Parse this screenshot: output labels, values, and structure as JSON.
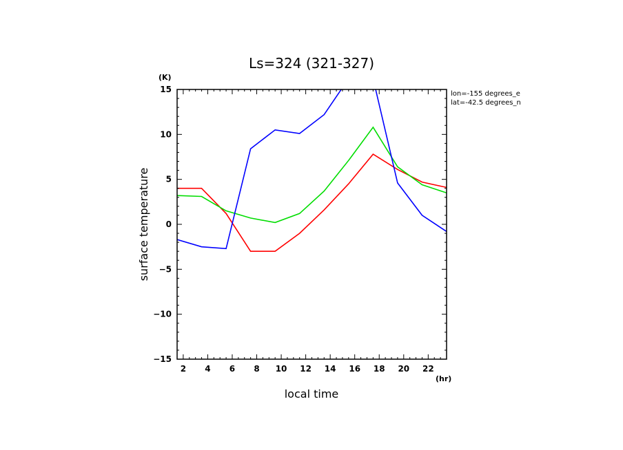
{
  "chart_data": {
    "type": "line",
    "title": "Ls=324 (321-327)",
    "xlabel": "local time",
    "ylabel": "surface temperature",
    "x_unit": "(hr)",
    "y_unit": "(K)",
    "xlim": [
      1.5,
      23.5
    ],
    "ylim": [
      -15,
      15
    ],
    "xticks": [
      2,
      4,
      6,
      8,
      10,
      12,
      14,
      16,
      18,
      20,
      22
    ],
    "yticks": [
      -15,
      -10,
      -5,
      0,
      5,
      10,
      15
    ],
    "annotations": [
      "lon=-155 degrees_e",
      "lat=-42.5 degrees_n"
    ],
    "x": [
      1.5,
      3.5,
      5.5,
      7.5,
      9.5,
      11.5,
      13.5,
      15.5,
      17.5,
      19.5,
      21.5,
      23.5
    ],
    "series": [
      {
        "color": "#ff0000",
        "values": [
          4.0,
          4.0,
          1.2,
          -3.0,
          -3.0,
          -1.0,
          1.6,
          4.5,
          7.8,
          6.1,
          4.7,
          4.1
        ]
      },
      {
        "color": "#00dd00",
        "values": [
          3.2,
          3.1,
          1.5,
          0.7,
          0.2,
          1.2,
          3.7,
          7.1,
          10.8,
          6.4,
          4.4,
          3.5
        ]
      },
      {
        "color": "#0000ff",
        "values": [
          -1.7,
          -2.5,
          -2.7,
          8.4,
          10.5,
          10.1,
          12.2,
          16.2,
          16.2,
          4.6,
          1.0,
          -0.8
        ]
      }
    ]
  }
}
